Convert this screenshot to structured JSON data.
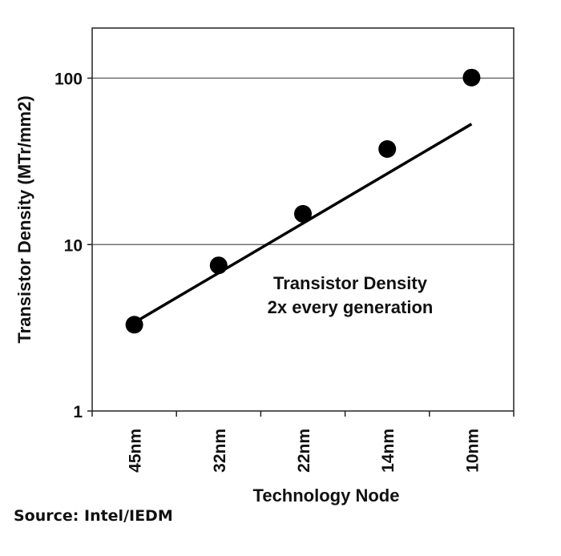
{
  "chart_data": {
    "type": "scatter",
    "title": "",
    "xlabel": "Technology Node",
    "ylabel": "Transistor Density (MTr/mm2)",
    "yscale": "log",
    "ylim": [
      1,
      200
    ],
    "categories": [
      "45nm",
      "32nm",
      "22nm",
      "14nm",
      "10nm"
    ],
    "yticks": [
      1,
      10,
      100
    ],
    "ytick_labels": [
      "1",
      "10",
      "100"
    ],
    "grid": "horizontal major lines at 10 and 100",
    "series": [
      {
        "values": [
          3.3,
          7.5,
          15.3,
          37.5,
          100.8
        ],
        "marker": "circle",
        "color": "#000000"
      }
    ],
    "trendline": {
      "start": {
        "category": "45nm",
        "value": 3.4
      },
      "end": {
        "category": "10nm",
        "value": 53
      },
      "color": "#000000"
    },
    "annotation": [
      "Transistor Density",
      "2x every generation"
    ]
  },
  "source": "Source: Intel/IEDM"
}
